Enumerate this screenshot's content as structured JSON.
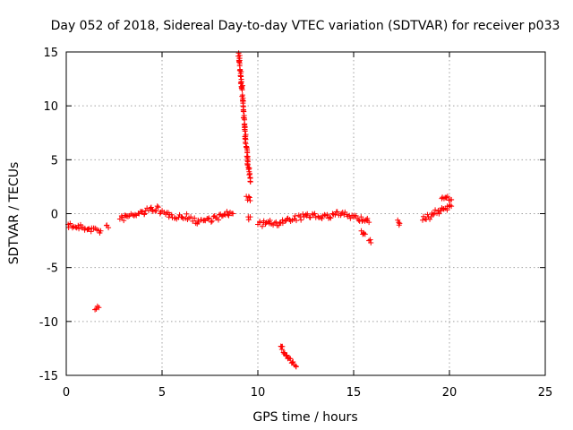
{
  "chart_data": {
    "type": "scatter",
    "title": "Day 052 of 2018, Sidereal Day-to-day VTEC variation (SDTVAR) for receiver p033",
    "xlabel": "GPS time / hours",
    "ylabel": "SDTVAR / TECUs",
    "xlim": [
      0,
      25
    ],
    "ylim": [
      -15,
      15
    ],
    "xticks": [
      0,
      5,
      10,
      15,
      20,
      25
    ],
    "yticks": [
      -15,
      -10,
      -5,
      0,
      5,
      10,
      15
    ],
    "xtick_labels": [
      "0",
      "5",
      "10",
      "15",
      "20",
      "25"
    ],
    "ytick_labels": [
      "-15",
      "-10",
      "-5",
      "0",
      "5",
      "10",
      "15"
    ],
    "grid": true,
    "marker": "+",
    "series_color": "#ff0000",
    "series": [
      {
        "name": "SDTVAR",
        "segments": [
          {
            "x": [
              0.1,
              0.4,
              0.8,
              1.2,
              1.6,
              1.8
            ],
            "y": [
              -1.0,
              -1.2,
              -1.3,
              -1.4,
              -1.5,
              -1.6
            ]
          },
          {
            "x": [
              2.1,
              2.2
            ],
            "y": [
              -1.1,
              -1.3
            ]
          },
          {
            "x": [
              1.5,
              1.7
            ],
            "y": [
              -8.9,
              -8.7
            ]
          },
          {
            "x": [
              2.8,
              3.3,
              3.8,
              4.3,
              4.8
            ],
            "y": [
              -0.5,
              -0.2,
              0.0,
              0.3,
              0.6
            ]
          },
          {
            "x": [
              4.9,
              5.5,
              6.0,
              6.5
            ],
            "y": [
              0.0,
              -0.1,
              -0.3,
              -0.3
            ]
          },
          {
            "x": [
              6.6,
              7.2,
              7.8,
              8.3,
              8.7
            ],
            "y": [
              -0.7,
              -0.6,
              -0.4,
              -0.1,
              0.0
            ]
          },
          {
            "x": [
              9.0,
              9.1,
              9.2,
              9.25,
              9.3,
              9.35,
              9.4,
              9.45,
              9.5,
              9.55,
              9.6
            ],
            "y": [
              14.9,
              13.0,
              11.0,
              9.5,
              8.0,
              7.0,
              6.2,
              5.2,
              4.3,
              3.6,
              3.0
            ]
          },
          {
            "x": [
              9.4,
              9.6
            ],
            "y": [
              1.6,
              1.2
            ]
          },
          {
            "x": [
              9.5,
              9.6
            ],
            "y": [
              -0.3,
              -0.3
            ]
          },
          {
            "x": [
              10.0,
              10.6,
              11.2,
              11.8
            ],
            "y": [
              -1.0,
              -0.9,
              -0.8,
              -0.6
            ]
          },
          {
            "x": [
              11.9,
              12.4,
              12.9,
              13.4,
              13.8
            ],
            "y": [
              -0.5,
              -0.3,
              -0.1,
              -0.2,
              -0.4
            ]
          },
          {
            "x": [
              11.2,
              11.4,
              11.6,
              11.8,
              12.0
            ],
            "y": [
              -12.3,
              -12.9,
              -13.4,
              -13.8,
              -14.2
            ]
          },
          {
            "x": [
              13.9,
              14.5,
              15.0,
              15.5,
              15.8
            ],
            "y": [
              0.0,
              -0.1,
              -0.3,
              -0.6,
              -0.8
            ]
          },
          {
            "x": [
              15.4,
              15.6
            ],
            "y": [
              -1.6,
              -1.9
            ]
          },
          {
            "x": [
              15.8,
              15.9
            ],
            "y": [
              -2.5,
              -2.7
            ]
          },
          {
            "x": [
              17.3,
              17.4
            ],
            "y": [
              -0.6,
              -0.9
            ]
          },
          {
            "x": [
              18.6,
              18.9,
              19.2,
              19.5,
              19.8,
              20.1
            ],
            "y": [
              -0.6,
              -0.3,
              0.0,
              0.3,
              0.5,
              0.7
            ]
          },
          {
            "x": [
              19.6,
              19.9,
              20.1
            ],
            "y": [
              1.4,
              1.6,
              1.3
            ]
          }
        ]
      }
    ]
  }
}
